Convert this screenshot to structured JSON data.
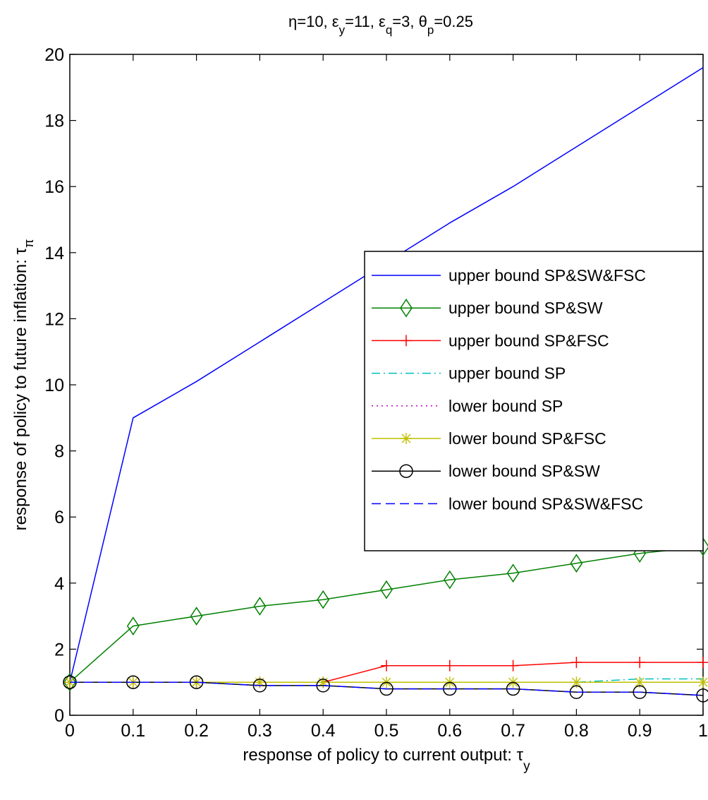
{
  "chart_data": {
    "type": "line",
    "title_parts": {
      "eta": "η=10, ",
      "eps_y_sym": "ε",
      "eps_y_sub": "y",
      "eps_y_val": "=11, ",
      "eps_q_sym": "ε",
      "eps_q_sub": "q",
      "eps_q_val": "=3, ",
      "theta_sym": "θ",
      "theta_sub": "p",
      "theta_val": "=0.25"
    },
    "xlabel_main": "response of policy to current output: τ",
    "xlabel_sub": "y",
    "ylabel_main": "response of policy to future inflation: τ",
    "ylabel_sub": "π",
    "xlim": [
      0,
      1
    ],
    "ylim": [
      0,
      20
    ],
    "x_ticks": [
      0,
      0.1,
      0.2,
      0.3,
      0.4,
      0.5,
      0.6,
      0.7,
      0.8,
      0.9,
      1
    ],
    "x_tick_labels": [
      "0",
      "0.1",
      "0.2",
      "0.3",
      "0.4",
      "0.5",
      "0.6",
      "0.7",
      "0.8",
      "0.9",
      "1"
    ],
    "y_ticks": [
      0,
      2,
      4,
      6,
      8,
      10,
      12,
      14,
      16,
      18,
      20
    ],
    "y_tick_labels": [
      "0",
      "2",
      "4",
      "6",
      "8",
      "10",
      "12",
      "14",
      "16",
      "18",
      "20"
    ],
    "grid": false,
    "legend_position": "right",
    "x": [
      0,
      0.1,
      0.2,
      0.3,
      0.4,
      0.5,
      0.6,
      0.7,
      0.8,
      0.9,
      1
    ],
    "series": [
      {
        "name": "upper bound SP&SW&FSC",
        "color": "#0000ff",
        "dash": "solid",
        "marker": "none",
        "values": [
          1,
          9.0,
          10.1,
          11.3,
          12.5,
          13.7,
          14.9,
          16.0,
          17.2,
          18.4,
          19.6
        ]
      },
      {
        "name": "upper bound SP&SW",
        "color": "#008000",
        "dash": "solid",
        "marker": "diamond",
        "values": [
          1,
          2.7,
          3.0,
          3.3,
          3.5,
          3.8,
          4.1,
          4.3,
          4.6,
          4.9,
          5.1
        ]
      },
      {
        "name": "upper bound SP&FSC",
        "color": "#ff0000",
        "dash": "solid",
        "marker": "plus",
        "values": [
          1,
          1,
          1,
          1,
          1,
          1.5,
          1.5,
          1.5,
          1.6,
          1.6,
          1.6
        ]
      },
      {
        "name": "upper bound SP",
        "color": "#00bfbf",
        "dash": "dashdot",
        "marker": "none",
        "values": [
          1,
          1,
          1,
          1,
          1,
          1,
          1,
          1,
          1,
          1.1,
          1.1
        ]
      },
      {
        "name": "lower bound SP",
        "color": "#bf00bf",
        "dash": "dotted",
        "marker": "none",
        "values": [
          1,
          1,
          1,
          1,
          1,
          1,
          1,
          1,
          1,
          1,
          1
        ]
      },
      {
        "name": "lower bound SP&FSC",
        "color": "#bfbf00",
        "dash": "solid",
        "marker": "star",
        "values": [
          1,
          1,
          1,
          1,
          1,
          1,
          1,
          1,
          1,
          1,
          1
        ]
      },
      {
        "name": "lower bound SP&SW",
        "color": "#000000",
        "dash": "solid",
        "marker": "circle",
        "values": [
          1,
          1,
          1,
          0.9,
          0.9,
          0.8,
          0.8,
          0.8,
          0.7,
          0.7,
          0.6
        ]
      },
      {
        "name": "lower bound SP&SW&FSC",
        "color": "#0000ff",
        "dash": "dashed",
        "marker": "none",
        "values": [
          1,
          1,
          1,
          0.9,
          0.9,
          0.8,
          0.8,
          0.8,
          0.7,
          0.7,
          0.6
        ]
      }
    ]
  }
}
